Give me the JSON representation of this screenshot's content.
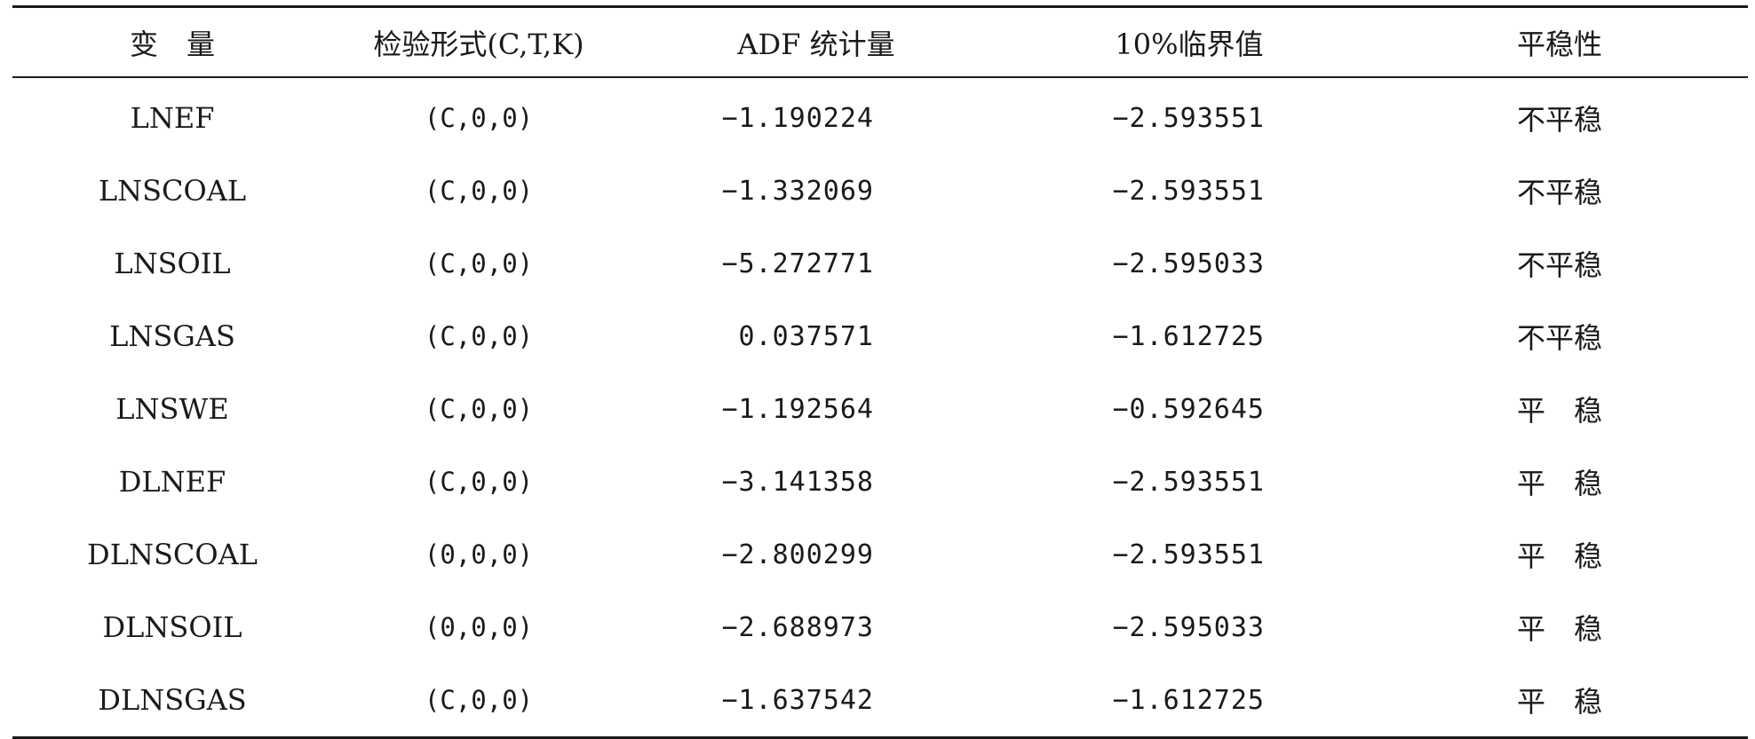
{
  "table": {
    "headers": [
      "变　量",
      "检验形式(C,T,K)",
      "ADF 统计量",
      "10%临界值",
      "平稳性"
    ],
    "rows": [
      [
        "LNEF",
        "(C,0,0)",
        "−1.190224",
        "−2.593551",
        "不平稳"
      ],
      [
        "LNSCOAL",
        "(C,0,0)",
        "−1.332069",
        "−2.593551",
        "不平稳"
      ],
      [
        "LNSOIL",
        "(C,0,0)",
        "−5.272771",
        "−2.595033",
        "不平稳"
      ],
      [
        "LNSGAS",
        "(C,0,0)",
        "0.037571",
        "−1.612725",
        "不平稳"
      ],
      [
        "LNSWE",
        "(C,0,0)",
        "−1.192564",
        "−0.592645",
        "平　稳"
      ],
      [
        "DLNEF",
        "(C,0,0)",
        "−3.141358",
        "−2.593551",
        "平　稳"
      ],
      [
        "DLNSCOAL",
        "(0,0,0)",
        "−2.800299",
        "−2.593551",
        "平　稳"
      ],
      [
        "DLNSOIL",
        "(0,0,0)",
        "−2.688973",
        "−2.595033",
        "平　稳"
      ],
      [
        "DLNSGAS",
        "(C,0,0)",
        "−1.637542",
        "−1.612725",
        "平　稳"
      ]
    ]
  }
}
